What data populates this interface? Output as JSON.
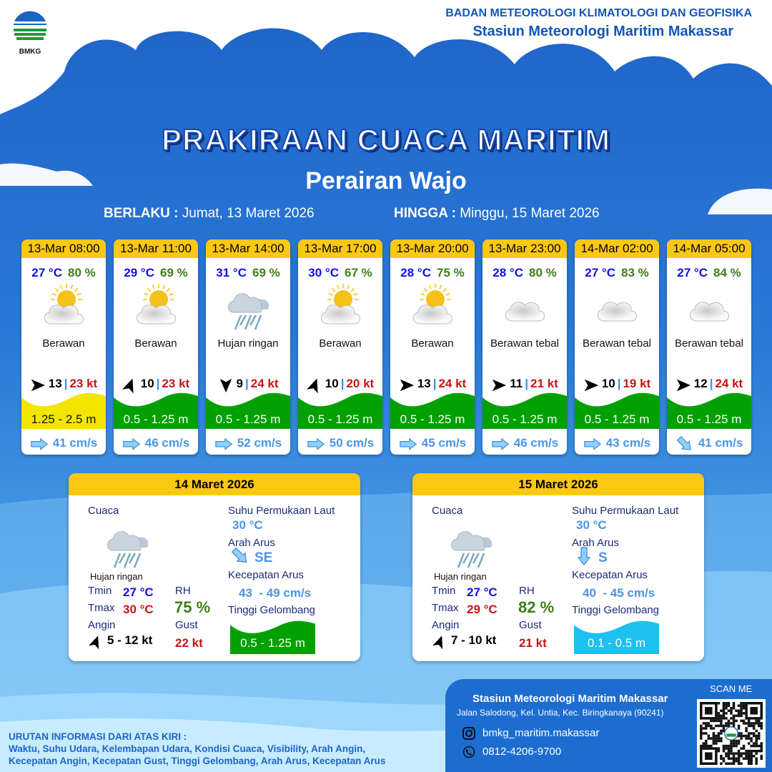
{
  "header": {
    "org": "BADAN METEOROLOGI KLIMATOLOGI DAN GEOFISIKA",
    "station": "Stasiun Meteorologi Maritim Makassar",
    "logo_text": "BMKG"
  },
  "title": "PRAKIRAAN CUACA MARITIM",
  "area": "Perairan Wajo",
  "validity": {
    "from_label": "BERLAKU :",
    "from": "Jumat, 13 Maret 2026",
    "to_label": "HINGGA :",
    "to": "Minggu, 15 Maret 2026"
  },
  "colors": {
    "header_yellow": "#fcc812",
    "wave_yellow": "#f2e600",
    "wave_green": "#00a000",
    "wave_blue": "#1ec0f0",
    "temp": "#1010ee",
    "humidity": "#3f7d19",
    "gust": "#c81414",
    "current": "#4a94e6"
  },
  "forecasts": [
    {
      "time": "13-Mar 08:00",
      "temp": "27 °C",
      "rh": "80 %",
      "icon": "partly-cloudy",
      "cond": "Berawan",
      "wind_dir_deg": 90,
      "wind": "13",
      "gust": "23 kt",
      "wave": "1.25 - 2.5 m",
      "wave_color": "#f2e600",
      "current_dir_deg": 90,
      "current": "41 cm/s"
    },
    {
      "time": "13-Mar 11:00",
      "temp": "29 °C",
      "rh": "69 %",
      "icon": "partly-cloudy",
      "cond": "Berawan",
      "wind_dir_deg": 20,
      "wind": "10",
      "gust": "23 kt",
      "wave": "0.5 - 1.25 m",
      "wave_color": "#00a000",
      "current_dir_deg": 90,
      "current": "46 cm/s"
    },
    {
      "time": "13-Mar 14:00",
      "temp": "31 °C",
      "rh": "69 %",
      "icon": "light-rain",
      "cond": "Hujan ringan",
      "wind_dir_deg": 180,
      "wind": "9",
      "gust": "24 kt",
      "wave": "0.5 - 1.25 m",
      "wave_color": "#00a000",
      "current_dir_deg": 90,
      "current": "52 cm/s"
    },
    {
      "time": "13-Mar 17:00",
      "temp": "30 °C",
      "rh": "67 %",
      "icon": "partly-cloudy",
      "cond": "Berawan",
      "wind_dir_deg": 20,
      "wind": "10",
      "gust": "20 kt",
      "wave": "0.5 - 1.25 m",
      "wave_color": "#00a000",
      "current_dir_deg": 90,
      "current": "50 cm/s"
    },
    {
      "time": "13-Mar 20:00",
      "temp": "28 °C",
      "rh": "75 %",
      "icon": "partly-cloudy",
      "cond": "Berawan",
      "wind_dir_deg": 90,
      "wind": "13",
      "gust": "24 kt",
      "wave": "0.5 - 1.25 m",
      "wave_color": "#00a000",
      "current_dir_deg": 90,
      "current": "45 cm/s"
    },
    {
      "time": "13-Mar 23:00",
      "temp": "28 °C",
      "rh": "80 %",
      "icon": "overcast",
      "cond": "Berawan tebal",
      "wind_dir_deg": 90,
      "wind": "11",
      "gust": "21 kt",
      "wave": "0.5 - 1.25 m",
      "wave_color": "#00a000",
      "current_dir_deg": 90,
      "current": "46 cm/s"
    },
    {
      "time": "14-Mar 02:00",
      "temp": "27 °C",
      "rh": "83 %",
      "icon": "overcast",
      "cond": "Berawan tebal",
      "wind_dir_deg": 90,
      "wind": "10",
      "gust": "19 kt",
      "wave": "0.5 - 1.25 m",
      "wave_color": "#00a000",
      "current_dir_deg": 90,
      "current": "43 cm/s"
    },
    {
      "time": "14-Mar 05:00",
      "temp": "27 °C",
      "rh": "84 %",
      "icon": "overcast",
      "cond": "Berawan tebal",
      "wind_dir_deg": 90,
      "wind": "12",
      "gust": "24 kt",
      "wave": "0.5 - 1.25 m",
      "wave_color": "#00a000",
      "current_dir_deg": 135,
      "current": "41 cm/s"
    }
  ],
  "daily_labels": {
    "weather": "Cuaca",
    "tmin": "Tmin",
    "tmax": "Tmax",
    "wind": "Angin",
    "rh": "RH",
    "gust": "Gust",
    "sst": "Suhu Permukaan Laut",
    "current_dir": "Arah Arus",
    "current_speed": "Kecepatan Arus",
    "wave": "Tinggi Gelombang"
  },
  "daily": [
    {
      "date": "14 Maret 2026",
      "icon": "light-rain",
      "cond": "Hujan ringan",
      "tmin": "27 °C",
      "tmax": "30 °C",
      "rh": "75 %",
      "wind": "5  - 12 kt",
      "wind_dir_deg": 20,
      "gust": "22 kt",
      "sst": "30 °C",
      "current_dir": "SE",
      "current_dir_deg": 135,
      "current_speed": "43  - 49 cm/s",
      "wave": "0.5 - 1.25 m",
      "wave_color": "#00a000"
    },
    {
      "date": "15 Maret 2026",
      "icon": "light-rain",
      "cond": "Hujan ringan",
      "tmin": "27 °C",
      "tmax": "29 °C",
      "rh": "82 %",
      "wind": "7  - 10 kt",
      "wind_dir_deg": 20,
      "gust": "21 kt",
      "sst": "30 °C",
      "current_dir": "S",
      "current_dir_deg": 180,
      "current_speed": "40  - 45 cm/s",
      "wave": "0.1 - 0.5 m",
      "wave_color": "#1ec0f0"
    }
  ],
  "legend": {
    "title": "URUTAN INFORMASI DARI ATAS KIRI :",
    "line1": "Waktu, Suhu Udara, Kelembapan Udara, Kondisi Cuaca, Visibility, Arah Angin,",
    "line2": "Kecepatan Angin, Kecepatan Gust, Tinggi Gelombang, Arah Arus, Kecepatan Arus"
  },
  "footer": {
    "station": "Stasiun Meteorologi Maritim Makassar",
    "address": "Jalan Salodong, Kel. Untia, Kec. Biringkanaya (90241)",
    "instagram": "bmkg_maritim.makassar",
    "phone": "0812-4206-9700",
    "scan": "SCAN ME"
  }
}
